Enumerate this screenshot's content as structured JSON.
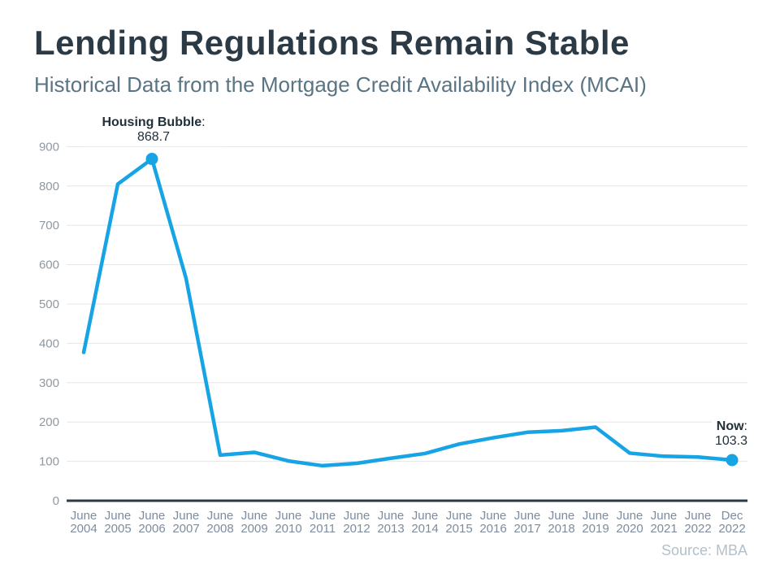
{
  "header": {
    "title": "Lending Regulations Remain Stable",
    "subtitle": "Historical Data from the Mortgage Credit Availability Index (MCAI)"
  },
  "source": {
    "credit": "Source: MBA"
  },
  "chart_data": {
    "type": "line",
    "title": "Lending Regulations Remain Stable",
    "subtitle": "Historical Data from the Mortgage Credit Availability Index (MCAI)",
    "categories": [
      "June 2004",
      "June 2005",
      "June 2006",
      "June 2007",
      "June 2008",
      "June 2009",
      "June 2010",
      "June 2011",
      "June 2012",
      "June 2013",
      "June 2014",
      "June 2015",
      "June 2016",
      "June 2017",
      "June 2018",
      "June 2019",
      "June 2020",
      "June 2021",
      "June 2022",
      "Dec 2022"
    ],
    "values": [
      377,
      805,
      868.7,
      565,
      116,
      123,
      101,
      89,
      95,
      108,
      120,
      144,
      160,
      174,
      178,
      187,
      121,
      113,
      111,
      103.3
    ],
    "xlabel": "",
    "ylabel": "",
    "ylim": [
      0,
      900
    ],
    "ytick_step": 100,
    "grid": true,
    "legend": "none",
    "colors": {
      "line": "#17a4e5",
      "marker": "#17a4e5",
      "axis_line": "#2b3a44",
      "gridline": "#e6e6e6",
      "y_tick_label": "#8e99a2",
      "x_tick_label": "#7e8c9e"
    },
    "annotations": [
      {
        "index": 2,
        "label": "Housing Bubble",
        "separator": ":",
        "value_text": "868.7"
      },
      {
        "index": 19,
        "label": "Now",
        "separator": ":",
        "value_text": "103.3"
      }
    ]
  }
}
